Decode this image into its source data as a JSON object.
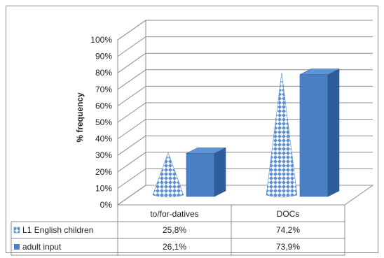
{
  "chart_data": {
    "type": "bar",
    "categories": [
      "to/for-datives",
      "DOCs"
    ],
    "series": [
      {
        "name": "L1 English children",
        "values": [
          25.8,
          74.2
        ],
        "labels": [
          "25,8%",
          "74,2%"
        ],
        "shape": "cone",
        "color": "#5b8fd0"
      },
      {
        "name": "adult input",
        "values": [
          26.1,
          73.9
        ],
        "labels": [
          "26,1%",
          "73,9%"
        ],
        "shape": "box",
        "color": "#4a7fc4"
      }
    ],
    "ylabel": "% frequency",
    "yticks": [
      "0%",
      "10%",
      "20%",
      "30%",
      "40%",
      "50%",
      "60%",
      "70%",
      "80%",
      "90%",
      "100%"
    ],
    "ylim": [
      0,
      100
    ],
    "grid": true,
    "legend": "data-table"
  }
}
